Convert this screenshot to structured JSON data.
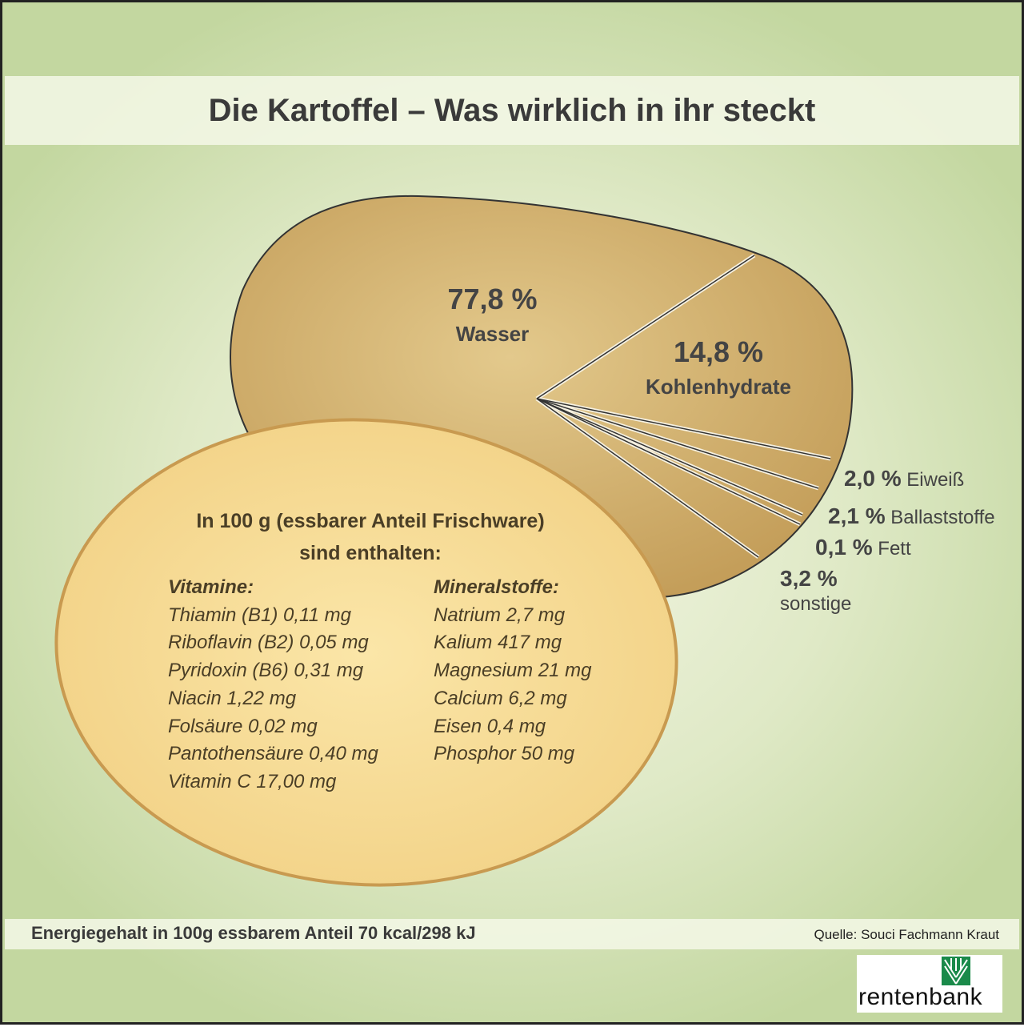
{
  "title": "Die Kartoffel – Was wirklich in ihr steckt",
  "chart_data": {
    "type": "pie",
    "title": "Die Kartoffel – Was wirklich in ihr steckt",
    "slices": [
      {
        "label": "Wasser",
        "value": 77.8,
        "text": "77,8 %"
      },
      {
        "label": "Kohlenhydrate",
        "value": 14.8,
        "text": "14,8 %"
      },
      {
        "label": "Eiweiß",
        "value": 2.0,
        "text": "2,0 %"
      },
      {
        "label": "Ballaststoffe",
        "value": 2.1,
        "text": "2,1 %"
      },
      {
        "label": "Fett",
        "value": 0.1,
        "text": "0,1 %"
      },
      {
        "label": "sonstige",
        "value": 3.2,
        "text": "3,2 %"
      }
    ]
  },
  "info": {
    "heading1": "In 100 g (essbarer Anteil Frischware)",
    "heading2": "sind enthalten:",
    "vitamins_title": "Vitamine:",
    "vitamins": [
      "Thiamin (B1) 0,11 mg",
      "Riboflavin (B2) 0,05 mg",
      "Pyridoxin (B6) 0,31 mg",
      "Niacin 1,22 mg",
      "Folsäure 0,02 mg",
      "Pantothensäure 0,40 mg",
      "Vitamin C 17,00 mg"
    ],
    "minerals_title": "Mineralstoffe:",
    "minerals": [
      "Natrium 2,7 mg",
      "Kalium 417 mg",
      "Magnesium 21 mg",
      "Calcium 6,2 mg",
      "Eisen 0,4 mg",
      "Phosphor 50 mg"
    ]
  },
  "footer": {
    "energy": "Energiegehalt in 100g essbarem Anteil 70 kcal/298 kJ",
    "source": "Quelle: Souci Fachmann Kraut"
  },
  "logo": {
    "text": "rentenbank",
    "color": "#1a8a4a"
  }
}
